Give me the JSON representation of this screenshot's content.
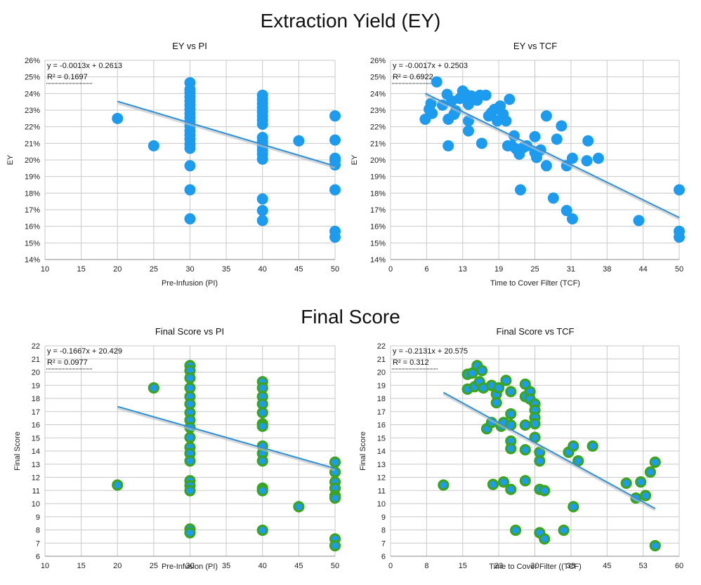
{
  "sections": [
    {
      "title": "Extraction Yield (EY)"
    },
    {
      "title": "Final Score"
    }
  ],
  "theme": {
    "ey_point_color": "#1c9bef",
    "score_point_fill": "#1c9bef",
    "score_point_ring": "#3aa51d",
    "trend_color": "#2f8fd8",
    "trend_shadow": "#b8c0c8",
    "grid_color": "#c9c9c9"
  },
  "chart_data": [
    {
      "type": "scatter",
      "title": "EY vs PI",
      "xlabel": "Pre-Infusion (PI)",
      "ylabel": "EY",
      "xlim": [
        10,
        50
      ],
      "ylim": [
        0.14,
        0.26
      ],
      "xticks": [
        "10",
        "15",
        "20",
        "25",
        "30",
        "35",
        "40",
        "45",
        "50"
      ],
      "yticks": [
        "14%",
        "15%",
        "16%",
        "17%",
        "18%",
        "19%",
        "20%",
        "21%",
        "22%",
        "23%",
        "24%",
        "25%",
        "26%"
      ],
      "grid": true,
      "marker": "solid",
      "equation": "y = -0.0013x + 0.2613",
      "r2": "R² = 0.1697",
      "trendline": {
        "slope": -0.0013,
        "intercept": 0.2613,
        "x_range": [
          20,
          50
        ]
      },
      "points": [
        {
          "x": 20,
          "y": 0.225
        },
        {
          "x": 25,
          "y": 0.2085
        },
        {
          "x": 30,
          "y": 0.2465
        },
        {
          "x": 30,
          "y": 0.2425
        },
        {
          "x": 30,
          "y": 0.2405
        },
        {
          "x": 30,
          "y": 0.238
        },
        {
          "x": 30,
          "y": 0.2355
        },
        {
          "x": 30,
          "y": 0.233
        },
        {
          "x": 30,
          "y": 0.2305
        },
        {
          "x": 30,
          "y": 0.228
        },
        {
          "x": 30,
          "y": 0.2255
        },
        {
          "x": 30,
          "y": 0.223
        },
        {
          "x": 30,
          "y": 0.2205
        },
        {
          "x": 30,
          "y": 0.2175
        },
        {
          "x": 30,
          "y": 0.215
        },
        {
          "x": 30,
          "y": 0.2125
        },
        {
          "x": 30,
          "y": 0.2095
        },
        {
          "x": 30,
          "y": 0.207
        },
        {
          "x": 30,
          "y": 0.1965
        },
        {
          "x": 30,
          "y": 0.182
        },
        {
          "x": 30,
          "y": 0.1645
        },
        {
          "x": 40,
          "y": 0.239
        },
        {
          "x": 40,
          "y": 0.2365
        },
        {
          "x": 40,
          "y": 0.234
        },
        {
          "x": 40,
          "y": 0.2315
        },
        {
          "x": 40,
          "y": 0.229
        },
        {
          "x": 40,
          "y": 0.2265
        },
        {
          "x": 40,
          "y": 0.224
        },
        {
          "x": 40,
          "y": 0.2215
        },
        {
          "x": 40,
          "y": 0.2135
        },
        {
          "x": 40,
          "y": 0.211
        },
        {
          "x": 40,
          "y": 0.2085
        },
        {
          "x": 40,
          "y": 0.206
        },
        {
          "x": 40,
          "y": 0.2035
        },
        {
          "x": 40,
          "y": 0.2005
        },
        {
          "x": 40,
          "y": 0.1765
        },
        {
          "x": 40,
          "y": 0.1695
        },
        {
          "x": 40,
          "y": 0.1635
        },
        {
          "x": 45,
          "y": 0.2115
        },
        {
          "x": 50,
          "y": 0.2265
        },
        {
          "x": 50,
          "y": 0.212
        },
        {
          "x": 50,
          "y": 0.201
        },
        {
          "x": 50,
          "y": 0.1995
        },
        {
          "x": 50,
          "y": 0.197
        },
        {
          "x": 50,
          "y": 0.182
        },
        {
          "x": 50,
          "y": 0.157
        },
        {
          "x": 50,
          "y": 0.1535
        }
      ]
    },
    {
      "type": "scatter",
      "title": "EY vs TCF",
      "xlabel": "Time to Cover Filter (TCF)",
      "ylabel": "EY",
      "xlim": [
        0,
        50
      ],
      "ylim": [
        0.14,
        0.26
      ],
      "xticks": [
        "0",
        "6",
        "13",
        "19",
        "25",
        "31",
        "38",
        "44",
        "50"
      ],
      "yticks": [
        "14%",
        "15%",
        "16%",
        "17%",
        "18%",
        "19%",
        "20%",
        "21%",
        "22%",
        "23%",
        "24%",
        "25%",
        "26%"
      ],
      "grid": true,
      "marker": "solid",
      "equation": "y = -0.0017x + 0.2503",
      "r2": "R² = 0.6922",
      "trendline": {
        "slope": -0.0017,
        "intercept": 0.2503,
        "x_range": [
          6,
          50
        ]
      },
      "points": [
        {
          "x": 6,
          "y": 0.2245
        },
        {
          "x": 6.7,
          "y": 0.2305
        },
        {
          "x": 7,
          "y": 0.234
        },
        {
          "x": 7.2,
          "y": 0.228
        },
        {
          "x": 8,
          "y": 0.247
        },
        {
          "x": 9,
          "y": 0.233
        },
        {
          "x": 9.8,
          "y": 0.2395
        },
        {
          "x": 10,
          "y": 0.2245
        },
        {
          "x": 10,
          "y": 0.2085
        },
        {
          "x": 10.6,
          "y": 0.2355
        },
        {
          "x": 11,
          "y": 0.2275
        },
        {
          "x": 11.3,
          "y": 0.2295
        },
        {
          "x": 12,
          "y": 0.237
        },
        {
          "x": 12.5,
          "y": 0.2415
        },
        {
          "x": 13,
          "y": 0.2395
        },
        {
          "x": 13.5,
          "y": 0.2335
        },
        {
          "x": 13.5,
          "y": 0.2235
        },
        {
          "x": 13.5,
          "y": 0.2175
        },
        {
          "x": 14,
          "y": 0.2385
        },
        {
          "x": 15,
          "y": 0.236
        },
        {
          "x": 15.5,
          "y": 0.239
        },
        {
          "x": 15.8,
          "y": 0.21
        },
        {
          "x": 16.5,
          "y": 0.239
        },
        {
          "x": 17,
          "y": 0.2265
        },
        {
          "x": 17.5,
          "y": 0.2285
        },
        {
          "x": 18,
          "y": 0.2305
        },
        {
          "x": 18.5,
          "y": 0.2235
        },
        {
          "x": 19,
          "y": 0.2325
        },
        {
          "x": 19.5,
          "y": 0.2275
        },
        {
          "x": 20,
          "y": 0.2235
        },
        {
          "x": 20.3,
          "y": 0.2085
        },
        {
          "x": 20.6,
          "y": 0.2365
        },
        {
          "x": 21,
          "y": 0.2085
        },
        {
          "x": 21.4,
          "y": 0.2145
        },
        {
          "x": 21.8,
          "y": 0.2065
        },
        {
          "x": 22.3,
          "y": 0.2035
        },
        {
          "x": 22.5,
          "y": 0.182
        },
        {
          "x": 23,
          "y": 0.2075
        },
        {
          "x": 23.6,
          "y": 0.2085
        },
        {
          "x": 25,
          "y": 0.214
        },
        {
          "x": 25,
          "y": 0.2045
        },
        {
          "x": 25.3,
          "y": 0.2015
        },
        {
          "x": 26,
          "y": 0.206
        },
        {
          "x": 27,
          "y": 0.2265
        },
        {
          "x": 27,
          "y": 0.1965
        },
        {
          "x": 28.2,
          "y": 0.177
        },
        {
          "x": 28.8,
          "y": 0.2125
        },
        {
          "x": 29.6,
          "y": 0.2205
        },
        {
          "x": 30.5,
          "y": 0.1965
        },
        {
          "x": 30.5,
          "y": 0.1695
        },
        {
          "x": 31.5,
          "y": 0.201
        },
        {
          "x": 31.5,
          "y": 0.1645
        },
        {
          "x": 34,
          "y": 0.1995
        },
        {
          "x": 34.2,
          "y": 0.2115
        },
        {
          "x": 36,
          "y": 0.201
        },
        {
          "x": 43,
          "y": 0.1635
        },
        {
          "x": 50,
          "y": 0.182
        },
        {
          "x": 50,
          "y": 0.157
        },
        {
          "x": 50,
          "y": 0.1535
        }
      ]
    },
    {
      "type": "scatter",
      "title": "Final Score vs PI",
      "xlabel": "Pre-Infusion (PI)",
      "ylabel": "Final Score",
      "xlim": [
        10,
        50
      ],
      "ylim": [
        5,
        22
      ],
      "xticks": [
        "10",
        "15",
        "20",
        "25",
        "30",
        "35",
        "40",
        "45",
        "50"
      ],
      "yticks": [
        "6",
        "7",
        "8",
        "9",
        "10",
        "11",
        "12",
        "13",
        "14",
        "15",
        "16",
        "17",
        "18",
        "19",
        "20",
        "21",
        "22"
      ],
      "grid": true,
      "marker": "ringed",
      "equation": "y = -0.1667x + 20.429",
      "r2": "R² = 0.0977",
      "trendline": {
        "slope": -0.1667,
        "intercept": 20.429,
        "x_range": [
          20,
          50
        ]
      },
      "points": [
        {
          "x": 20,
          "y": 10.75
        },
        {
          "x": 25,
          "y": 18.6
        },
        {
          "x": 30,
          "y": 20.4
        },
        {
          "x": 30,
          "y": 20
        },
        {
          "x": 30,
          "y": 19.4
        },
        {
          "x": 30,
          "y": 18.6
        },
        {
          "x": 30,
          "y": 17.9
        },
        {
          "x": 30,
          "y": 17.3
        },
        {
          "x": 30,
          "y": 16.6
        },
        {
          "x": 30,
          "y": 16
        },
        {
          "x": 30,
          "y": 15.4
        },
        {
          "x": 30,
          "y": 14.6
        },
        {
          "x": 30,
          "y": 13.8
        },
        {
          "x": 30,
          "y": 13.3
        },
        {
          "x": 30,
          "y": 12.7
        },
        {
          "x": 30,
          "y": 11.1
        },
        {
          "x": 30,
          "y": 10.7
        },
        {
          "x": 30,
          "y": 10.3
        },
        {
          "x": 30,
          "y": 7.2
        },
        {
          "x": 30,
          "y": 6.9
        },
        {
          "x": 40,
          "y": 19.1
        },
        {
          "x": 40,
          "y": 18.6
        },
        {
          "x": 40,
          "y": 17.9
        },
        {
          "x": 40,
          "y": 17.3
        },
        {
          "x": 40,
          "y": 16.6
        },
        {
          "x": 40,
          "y": 15.7
        },
        {
          "x": 40,
          "y": 15.5
        },
        {
          "x": 40,
          "y": 13.9
        },
        {
          "x": 40,
          "y": 13.3
        },
        {
          "x": 40,
          "y": 12.7
        },
        {
          "x": 40,
          "y": 10.5
        },
        {
          "x": 40,
          "y": 10.3
        },
        {
          "x": 40,
          "y": 7.1
        },
        {
          "x": 45,
          "y": 9
        },
        {
          "x": 50,
          "y": 12.6
        },
        {
          "x": 50,
          "y": 11.8
        },
        {
          "x": 50,
          "y": 11
        },
        {
          "x": 50,
          "y": 10.5
        },
        {
          "x": 50,
          "y": 9.9
        },
        {
          "x": 50,
          "y": 9.7
        },
        {
          "x": 50,
          "y": 6.4
        },
        {
          "x": 50,
          "y": 5.85
        }
      ]
    },
    {
      "type": "scatter",
      "title": "Final Score vs TCF",
      "xlabel": "Time to Cover Filter ((TCF)",
      "ylabel": "Final Score",
      "xlim": [
        0,
        60
      ],
      "ylim": [
        5,
        22
      ],
      "xticks": [
        "0",
        "8",
        "15",
        "23",
        "30",
        "38",
        "45",
        "53",
        "60"
      ],
      "yticks": [
        "6",
        "7",
        "8",
        "9",
        "10",
        "11",
        "12",
        "13",
        "14",
        "15",
        "16",
        "17",
        "18",
        "19",
        "20",
        "21",
        "22"
      ],
      "grid": true,
      "marker": "ringed",
      "equation": "y = -0.2131x + 20.575",
      "r2": "R² = 0.312",
      "trendline": {
        "slope": -0.2131,
        "intercept": 20.575,
        "x_range": [
          11,
          55
        ]
      },
      "points": [
        {
          "x": 11,
          "y": 10.75
        },
        {
          "x": 16,
          "y": 19.7
        },
        {
          "x": 16,
          "y": 18.5
        },
        {
          "x": 17,
          "y": 19.8
        },
        {
          "x": 17.5,
          "y": 18.7
        },
        {
          "x": 18,
          "y": 20.4
        },
        {
          "x": 18.5,
          "y": 19.1
        },
        {
          "x": 19,
          "y": 20
        },
        {
          "x": 19.3,
          "y": 18.6
        },
        {
          "x": 20,
          "y": 15.3
        },
        {
          "x": 21,
          "y": 18.8
        },
        {
          "x": 21,
          "y": 15.8
        },
        {
          "x": 21.3,
          "y": 10.8
        },
        {
          "x": 22,
          "y": 18.1
        },
        {
          "x": 22,
          "y": 17.4
        },
        {
          "x": 22.5,
          "y": 18.6
        },
        {
          "x": 23,
          "y": 15.5
        },
        {
          "x": 23.5,
          "y": 15.8
        },
        {
          "x": 23.5,
          "y": 11
        },
        {
          "x": 24,
          "y": 19.2
        },
        {
          "x": 25,
          "y": 18.3
        },
        {
          "x": 25,
          "y": 16.5
        },
        {
          "x": 25,
          "y": 15.6
        },
        {
          "x": 25,
          "y": 14.3
        },
        {
          "x": 25,
          "y": 13.7
        },
        {
          "x": 25,
          "y": 10.4
        },
        {
          "x": 26,
          "y": 7.1
        },
        {
          "x": 28,
          "y": 18.9
        },
        {
          "x": 28,
          "y": 17.9
        },
        {
          "x": 28,
          "y": 15.6
        },
        {
          "x": 28,
          "y": 13.6
        },
        {
          "x": 28,
          "y": 11.1
        },
        {
          "x": 29,
          "y": 18.3
        },
        {
          "x": 29,
          "y": 17.7
        },
        {
          "x": 30,
          "y": 17.3
        },
        {
          "x": 30,
          "y": 16.8
        },
        {
          "x": 30,
          "y": 16.2
        },
        {
          "x": 30,
          "y": 15.7
        },
        {
          "x": 30,
          "y": 14.6
        },
        {
          "x": 31,
          "y": 13.4
        },
        {
          "x": 31,
          "y": 12.7
        },
        {
          "x": 31,
          "y": 10.4
        },
        {
          "x": 31,
          "y": 6.9
        },
        {
          "x": 32,
          "y": 10.3
        },
        {
          "x": 32,
          "y": 6.4
        },
        {
          "x": 36,
          "y": 7.1
        },
        {
          "x": 37,
          "y": 13.4
        },
        {
          "x": 38,
          "y": 13.9
        },
        {
          "x": 38,
          "y": 9
        },
        {
          "x": 39,
          "y": 12.7
        },
        {
          "x": 42,
          "y": 13.9
        },
        {
          "x": 49,
          "y": 10.9
        },
        {
          "x": 51,
          "y": 9.7
        },
        {
          "x": 52,
          "y": 11
        },
        {
          "x": 53,
          "y": 9.9
        },
        {
          "x": 54,
          "y": 11.8
        },
        {
          "x": 55,
          "y": 12.6
        },
        {
          "x": 55,
          "y": 5.85
        }
      ]
    }
  ]
}
